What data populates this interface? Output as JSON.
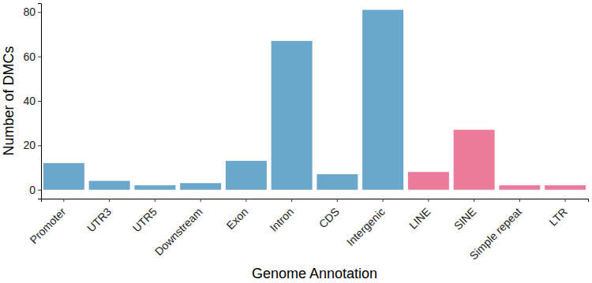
{
  "chart_data": {
    "type": "bar",
    "x_label": "Genome Annotation",
    "y_label": "Number of DMCs",
    "categories": [
      "Promoter",
      "UTR3",
      "UTR5",
      "Downstream",
      "Exon",
      "Intron",
      "CDS",
      "Intergenic",
      "LINE",
      "SINE",
      "Simple repeat",
      "LTR"
    ],
    "values": [
      12,
      4,
      2,
      3,
      13,
      67,
      7,
      81,
      8,
      27,
      2,
      2
    ],
    "colors": [
      "#6ba7cc",
      "#6ba7cc",
      "#6ba7cc",
      "#6ba7cc",
      "#6ba7cc",
      "#6ba7cc",
      "#6ba7cc",
      "#6ba7cc",
      "#ee7a9b",
      "#ee7a9b",
      "#ee7a9b",
      "#ee7a9b"
    ],
    "ylim": [
      -4,
      84
    ],
    "yticks": [
      0,
      20,
      40,
      60,
      80
    ],
    "grid": false
  }
}
